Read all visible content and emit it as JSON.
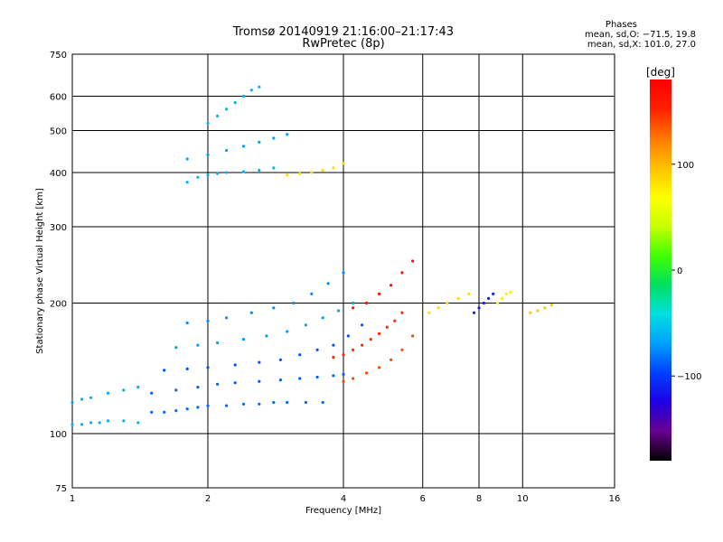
{
  "title": "Tromsø 20140919 21:16:00–21:17:43",
  "subtitle": "RwPretec (8p)",
  "legend": {
    "heading": "Phases",
    "line1": "mean, sd,O: −71.5, 19.8",
    "line2": "mean, sd,X: 101.0, 27.0"
  },
  "chart_data": {
    "type": "scatter",
    "xlabel": "Frequency [MHz]",
    "ylabel": "Stationary phase Virtual Height [km]",
    "x_scale": "log",
    "y_scale": "log",
    "xlim": [
      1,
      16
    ],
    "ylim": [
      75,
      750
    ],
    "x_ticks": [
      "1",
      "2",
      "4",
      "6",
      "8",
      "10",
      "16"
    ],
    "x_tick_values": [
      1,
      2,
      4,
      6,
      8,
      10,
      16
    ],
    "y_ticks": [
      "75",
      "100",
      "200",
      "300",
      "400",
      "500",
      "600",
      "750"
    ],
    "y_tick_values": [
      75,
      100,
      200,
      300,
      400,
      500,
      600,
      750
    ],
    "grid": true,
    "colorbar": {
      "label": "[deg]",
      "ticks": [
        "100",
        "0",
        "−100"
      ],
      "tick_values": [
        100,
        0,
        -100
      ],
      "range": [
        -180,
        180
      ],
      "colormap": [
        "#000000",
        "#6a0090",
        "#1e00e6",
        "#0040ff",
        "#00a0ff",
        "#00e0e0",
        "#00e060",
        "#40ff00",
        "#c8ff00",
        "#ffff00",
        "#ffc000",
        "#ff7800",
        "#ff2000",
        "#ff0000"
      ]
    },
    "series": [
      {
        "x": [
          1.0,
          1.05,
          1.1,
          1.15,
          1.2,
          1.3,
          1.4
        ],
        "y": [
          105,
          105,
          106,
          106,
          107,
          107,
          106
        ],
        "phase": -60
      },
      {
        "x": [
          1.0,
          1.05,
          1.1,
          1.2,
          1.3,
          1.4
        ],
        "y": [
          118,
          120,
          121,
          124,
          126,
          128
        ],
        "phase": -65
      },
      {
        "x": [
          1.5,
          1.6,
          1.7,
          1.8,
          1.9,
          2.0,
          2.2,
          2.4,
          2.6,
          2.8,
          3.0,
          3.3,
          3.6
        ],
        "y": [
          112,
          112,
          113,
          114,
          115,
          116,
          116,
          117,
          117,
          118,
          118,
          118,
          118
        ],
        "phase": -85
      },
      {
        "x": [
          1.5,
          1.7,
          1.9,
          2.1,
          2.3,
          2.6,
          2.9,
          3.2,
          3.5,
          3.8,
          4.0
        ],
        "y": [
          124,
          126,
          128,
          130,
          131,
          132,
          133,
          134,
          135,
          136,
          137
        ],
        "phase": -88
      },
      {
        "x": [
          1.6,
          1.8,
          2.0,
          2.3,
          2.6,
          2.9,
          3.2,
          3.5,
          3.8,
          4.1,
          4.4
        ],
        "y": [
          140,
          141,
          142,
          144,
          146,
          148,
          152,
          156,
          160,
          168,
          178
        ],
        "phase": -92
      },
      {
        "x": [
          1.7,
          1.9,
          2.1,
          2.4,
          2.7,
          3.0,
          3.3,
          3.6,
          3.9,
          4.2
        ],
        "y": [
          158,
          160,
          162,
          165,
          168,
          172,
          178,
          185,
          192,
          200
        ],
        "phase": -70
      },
      {
        "x": [
          1.8,
          2.0,
          2.2,
          2.5,
          2.8,
          3.1,
          3.4,
          3.7,
          4.0
        ],
        "y": [
          180,
          182,
          185,
          190,
          195,
          200,
          210,
          222,
          235
        ],
        "phase": -75
      },
      {
        "x": [
          1.8,
          1.9,
          2.0,
          2.1,
          2.2,
          2.4,
          2.6,
          2.8
        ],
        "y": [
          380,
          390,
          395,
          398,
          400,
          402,
          405,
          410
        ],
        "phase": -60
      },
      {
        "x": [
          1.8,
          2.0,
          2.2,
          2.4,
          2.6,
          2.8,
          3.0
        ],
        "y": [
          430,
          440,
          450,
          460,
          470,
          480,
          490
        ],
        "phase": -68
      },
      {
        "x": [
          2.0,
          2.1,
          2.2,
          2.3,
          2.4,
          2.5,
          2.6
        ],
        "y": [
          520,
          540,
          560,
          580,
          600,
          620,
          630
        ],
        "phase": -62
      },
      {
        "x": [
          3.0,
          3.2,
          3.4,
          3.6,
          3.8,
          4.0
        ],
        "y": [
          395,
          398,
          400,
          405,
          410,
          420
        ],
        "phase": 85
      },
      {
        "x": [
          3.8,
          4.0,
          4.2,
          4.4,
          4.6,
          4.8,
          5.0,
          5.2,
          5.4
        ],
        "y": [
          150,
          152,
          156,
          160,
          165,
          170,
          176,
          182,
          190
        ],
        "phase": 150
      },
      {
        "x": [
          4.0,
          4.2,
          4.5,
          4.8,
          5.1,
          5.4,
          5.7
        ],
        "y": [
          132,
          134,
          138,
          142,
          148,
          156,
          168
        ],
        "phase": 140
      },
      {
        "x": [
          4.2,
          4.5,
          4.8,
          5.1,
          5.4,
          5.7
        ],
        "y": [
          195,
          200,
          210,
          220,
          235,
          250
        ],
        "phase": 165
      },
      {
        "x": [
          6.2,
          6.5,
          6.8,
          7.2,
          7.6
        ],
        "y": [
          190,
          195,
          200,
          205,
          210
        ],
        "phase": 85
      },
      {
        "x": [
          7.8,
          8.0,
          8.2,
          8.4,
          8.6
        ],
        "y": [
          190,
          195,
          200,
          205,
          210
        ],
        "phase": -110
      },
      {
        "x": [
          8.8,
          9.0,
          9.2,
          9.4
        ],
        "y": [
          200,
          205,
          210,
          212
        ],
        "phase": 75
      },
      {
        "x": [
          10.4,
          10.8,
          11.2,
          11.6
        ],
        "y": [
          190,
          192,
          195,
          198
        ],
        "phase": 95
      }
    ]
  }
}
